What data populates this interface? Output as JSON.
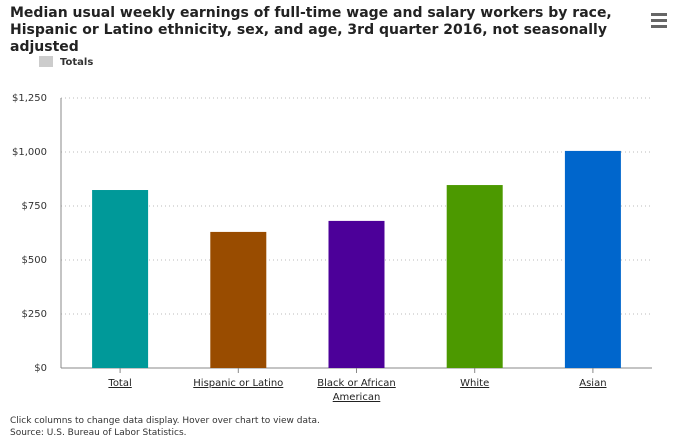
{
  "chart_data": {
    "type": "bar",
    "title": "Median usual weekly earnings of full-time wage and salary workers by race, Hispanic or Latino ethnicity, sex, and age, 3rd quarter 2016, not seasonally adjusted",
    "categories": [
      "Total",
      "Hispanic or Latino",
      "Black or African American",
      "White",
      "Asian"
    ],
    "series": [
      {
        "name": "Totals",
        "color": "#cccccc",
        "values": [
          824,
          630,
          681,
          847,
          1005
        ],
        "bar_colors": [
          "#009999",
          "#994c00",
          "#4c0099",
          "#4c9900",
          "#0066cc"
        ]
      }
    ],
    "ylim": [
      0,
      1250
    ],
    "yticks": [
      {
        "value": 0,
        "label": "$0"
      },
      {
        "value": 250,
        "label": "$250"
      },
      {
        "value": 500,
        "label": "$500"
      },
      {
        "value": 750,
        "label": "$750"
      },
      {
        "value": 1000,
        "label": "$1,000"
      },
      {
        "value": 1250,
        "label": "$1,250"
      }
    ],
    "grid": true,
    "notes": [
      "Click columns to change data display. Hover over chart to view data.",
      "Source: U.S. Bureau of Labor Statistics."
    ]
  }
}
